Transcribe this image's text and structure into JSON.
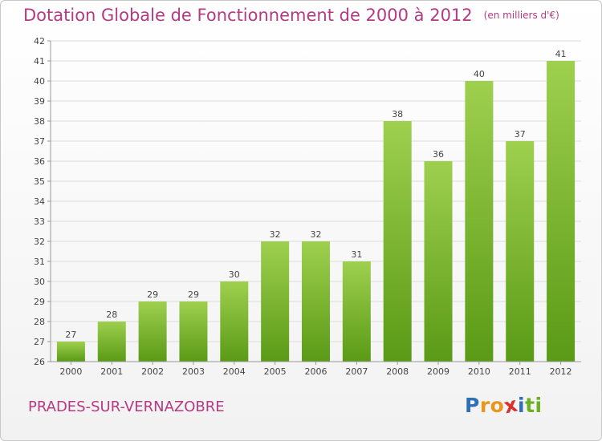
{
  "header": {
    "title": "Dotation Globale de Fonctionnement de 2000 à 2012",
    "subtitle": "(en milliers d'€)"
  },
  "footer": {
    "place": "PRADES-SUR-VERNAZOBRE",
    "logo": {
      "letters": [
        "P",
        "r",
        "o",
        "x",
        "i",
        "t",
        "i"
      ],
      "colors": [
        "#2f6fb5",
        "#e8961e",
        "#e8961e",
        "#d9302c",
        "#2f6fb5",
        "#6ab023",
        "#6ab023"
      ]
    }
  },
  "chart_data": {
    "type": "bar",
    "categories": [
      "2000",
      "2001",
      "2002",
      "2003",
      "2004",
      "2005",
      "2006",
      "2007",
      "2008",
      "2009",
      "2010",
      "2011",
      "2012"
    ],
    "values": [
      27,
      28,
      29,
      29,
      30,
      32,
      32,
      31,
      38,
      36,
      40,
      37,
      41
    ],
    "data_labels": [
      "27",
      "28",
      "29",
      "29",
      "30",
      "32",
      "32",
      "31",
      "38",
      "36",
      "40",
      "37",
      "41"
    ],
    "ylim": [
      26,
      42
    ],
    "yticks": [
      "26",
      "27",
      "28",
      "29",
      "30",
      "31",
      "32",
      "33",
      "34",
      "35",
      "36",
      "37",
      "38",
      "39",
      "40",
      "41",
      "42"
    ],
    "grid": true,
    "bar_color": "#7fbf2e",
    "bar_color_light": "#9ed04e",
    "bar_color_dark": "#5a9a16"
  }
}
